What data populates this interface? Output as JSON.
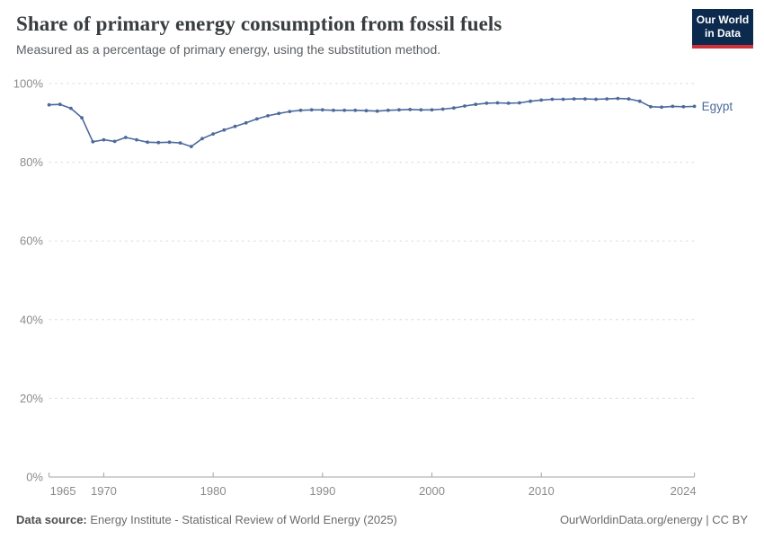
{
  "header": {
    "title": "Share of primary energy consumption from fossil fuels",
    "subtitle": "Measured as a percentage of primary energy, using the substitution method."
  },
  "logo": {
    "line1": "Our World",
    "line2": "in Data"
  },
  "colors": {
    "line": "#4C6A9C",
    "logo_bg": "#0C2A4D",
    "logo_red": "#D13239",
    "gridline": "#d9d9d9",
    "axis": "#a3a3a3",
    "tick_label": "#8b8b8b"
  },
  "footer": {
    "source_label": "Data source:",
    "source_text": " Energy Institute - Statistical Review of World Energy (2025)",
    "right_text": "OurWorldinData.org/energy | CC BY"
  },
  "chart_data": {
    "type": "line",
    "title": "Share of primary energy consumption from fossil fuels",
    "subtitle": "Measured as a percentage of primary energy, using the substitution method.",
    "xlabel": "",
    "ylabel": "",
    "ylim": [
      0,
      100
    ],
    "yticks": [
      0,
      20,
      40,
      60,
      80,
      100
    ],
    "ytick_suffix": "%",
    "xticks": [
      1965,
      1970,
      1980,
      1990,
      2000,
      2010,
      2024
    ],
    "x_start": 1965,
    "x_end": 2024,
    "grid": "horizontal-dashed",
    "legend": "end-of-line-label",
    "series": [
      {
        "name": "Egypt",
        "color": "#4C6A9C",
        "values": [
          94.6,
          94.7,
          93.7,
          91.3,
          85.2,
          85.7,
          85.3,
          86.3,
          85.7,
          85.1,
          85.0,
          85.1,
          84.9,
          84.0,
          86.0,
          87.2,
          88.2,
          89.1,
          90.0,
          91.0,
          91.8,
          92.4,
          92.9,
          93.2,
          93.3,
          93.3,
          93.2,
          93.2,
          93.2,
          93.1,
          93.0,
          93.2,
          93.3,
          93.4,
          93.3,
          93.3,
          93.5,
          93.8,
          94.3,
          94.7,
          95.0,
          95.1,
          95.0,
          95.1,
          95.5,
          95.8,
          96.0,
          96.0,
          96.1,
          96.1,
          96.0,
          96.1,
          96.2,
          96.1,
          95.5,
          94.1,
          94.0,
          94.2,
          94.1,
          94.2
        ]
      }
    ]
  }
}
